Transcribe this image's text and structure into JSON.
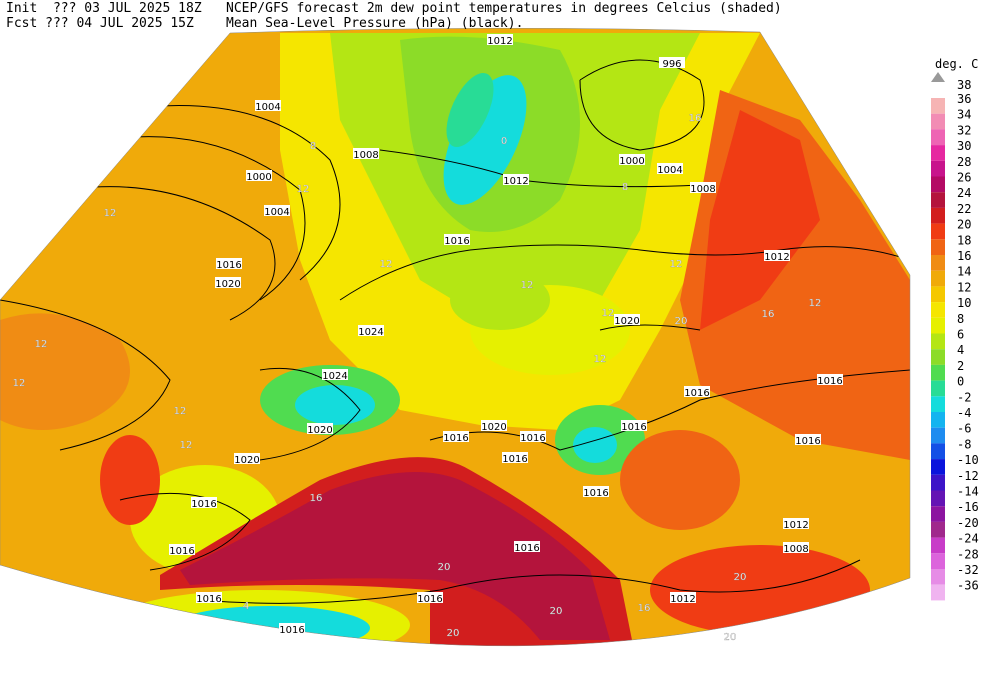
{
  "header": {
    "init": "Init  ??? 03 JUL 2025 18Z",
    "fcst": "Fcst ??? 04 JUL 2025 15Z",
    "title": "NCEP/GFS forecast 2m dew point temperatures in degrees Celcius (shaded)",
    "subtitle": "Mean Sea-Level Pressure (hPa) (black)."
  },
  "legend": {
    "unit": "deg. C",
    "max": 38,
    "levels": [
      {
        "value": 36,
        "color": "#f6b4b4"
      },
      {
        "value": 34,
        "color": "#f28cb4"
      },
      {
        "value": 32,
        "color": "#ee64b4"
      },
      {
        "value": 30,
        "color": "#e628a0"
      },
      {
        "value": 28,
        "color": "#c8148c"
      },
      {
        "value": 26,
        "color": "#b40a64"
      },
      {
        "value": 24,
        "color": "#b4143c"
      },
      {
        "value": 22,
        "color": "#d21e1e"
      },
      {
        "value": 20,
        "color": "#f03c14"
      },
      {
        "value": 18,
        "color": "#f06414"
      },
      {
        "value": 16,
        "color": "#f08c14"
      },
      {
        "value": 14,
        "color": "#f0aa0a"
      },
      {
        "value": 12,
        "color": "#f5c800"
      },
      {
        "value": 10,
        "color": "#f5e600"
      },
      {
        "value": 8,
        "color": "#e6f000"
      },
      {
        "value": 6,
        "color": "#b4e614"
      },
      {
        "value": 4,
        "color": "#8cdc28"
      },
      {
        "value": 2,
        "color": "#50dc50"
      },
      {
        "value": 0,
        "color": "#28dc96"
      },
      {
        "value": -2,
        "color": "#14dcdc"
      },
      {
        "value": -4,
        "color": "#14b4f0"
      },
      {
        "value": -6,
        "color": "#1e8cf0"
      },
      {
        "value": -8,
        "color": "#1450e6"
      },
      {
        "value": -10,
        "color": "#0a14dc"
      },
      {
        "value": -12,
        "color": "#3c14c8"
      },
      {
        "value": -14,
        "color": "#6414b4"
      },
      {
        "value": -16,
        "color": "#8c14a0"
      },
      {
        "value": -20,
        "color": "#a0288c"
      },
      {
        "value": -24,
        "color": "#c83cc8"
      },
      {
        "value": -28,
        "color": "#dc64dc"
      },
      {
        "value": -32,
        "color": "#e68ce6"
      },
      {
        "value": -36,
        "color": "#f0b4f0"
      }
    ]
  },
  "isobar_labels": [
    1012,
    996,
    1004,
    1008,
    1000,
    1000,
    1004,
    1008,
    1012,
    1004,
    1016,
    1012,
    1016,
    1020,
    1024,
    1024,
    1020,
    1020,
    1016,
    1016,
    1016,
    1016,
    1016,
    1016,
    1016,
    1016,
    1020,
    1016,
    1016,
    1016,
    1016,
    1016,
    1016,
    1012,
    1008,
    1012,
    1020
  ],
  "dewpoint_labels": [
    12,
    12,
    12,
    12,
    12,
    12,
    12,
    12,
    12,
    12,
    12,
    12,
    0,
    8,
    8,
    16,
    16,
    16,
    16,
    20,
    20,
    20,
    20,
    20,
    20,
    4
  ]
}
